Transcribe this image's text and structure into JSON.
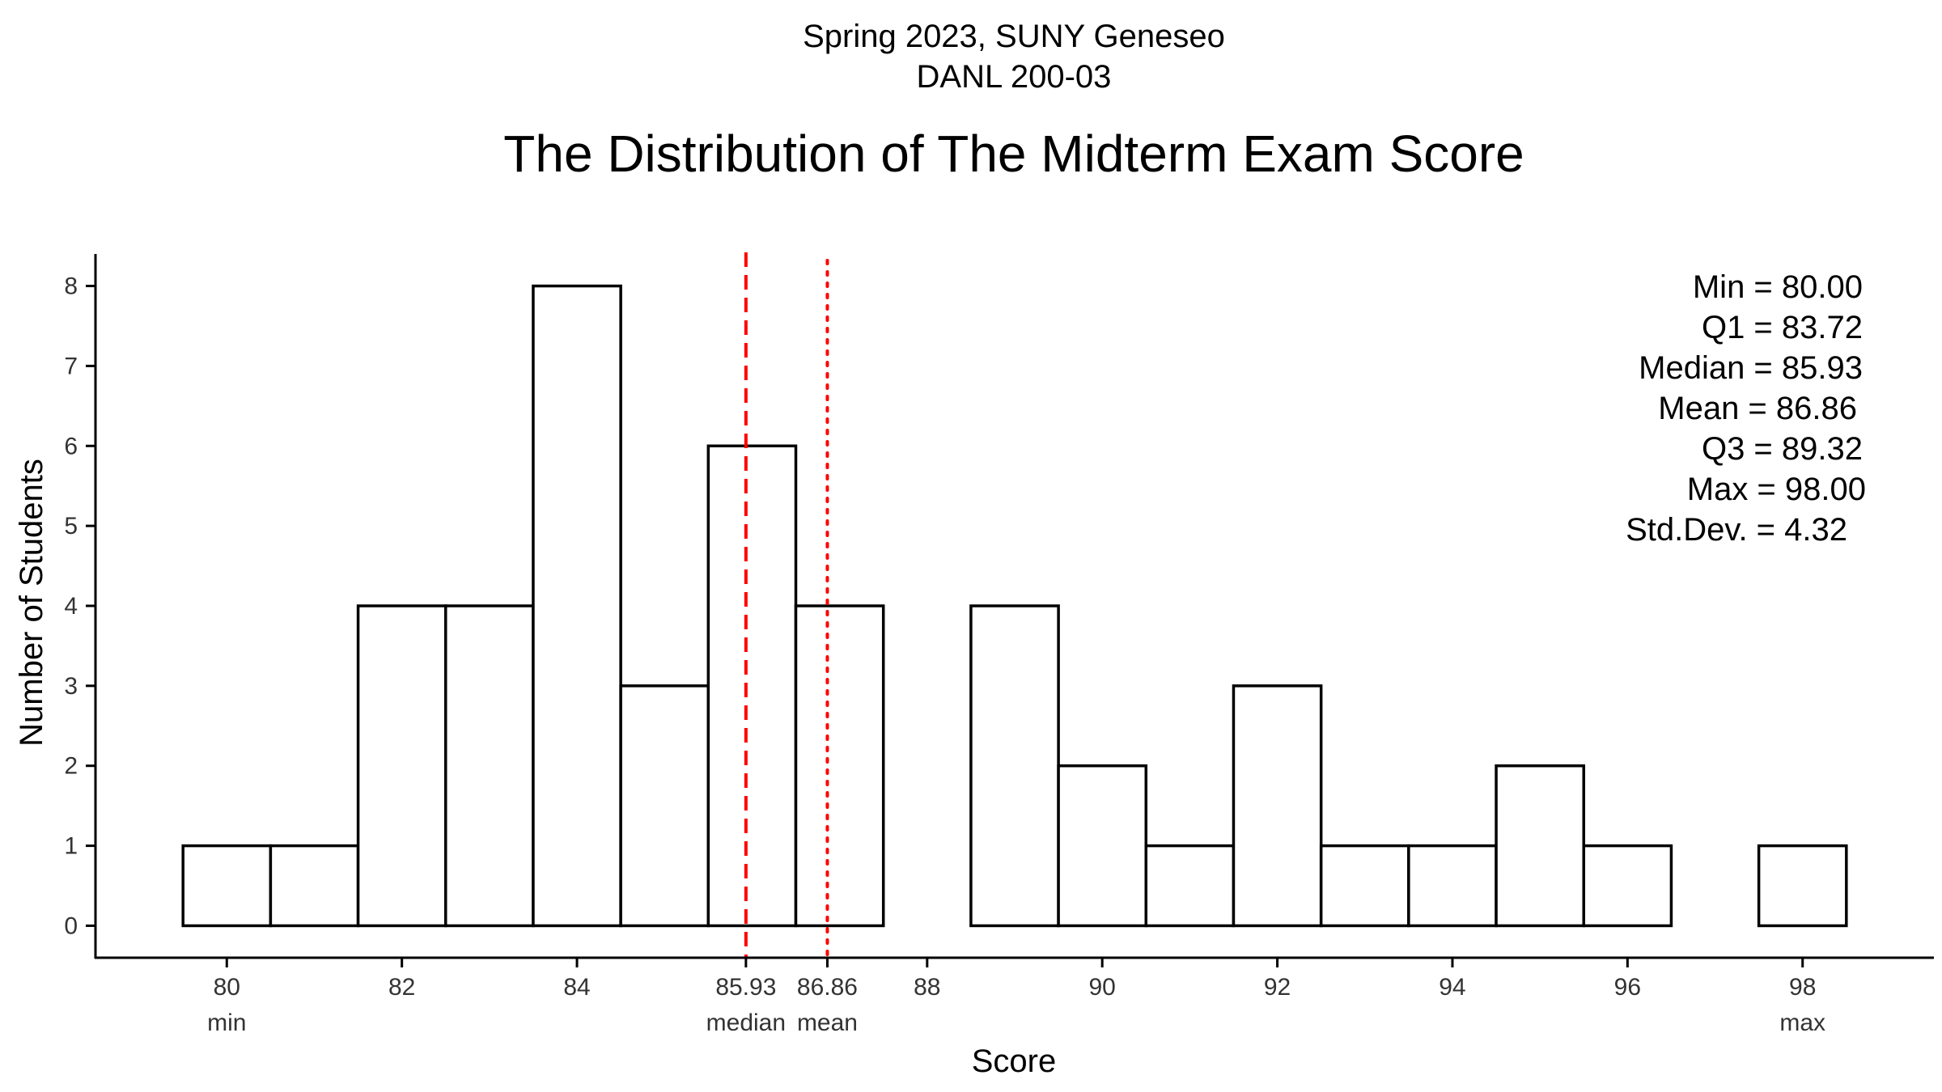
{
  "chart_data": {
    "type": "bar",
    "subtitle_lines": [
      "Spring 2023, SUNY Geneseo",
      "DANL 200-03"
    ],
    "title": "The Distribution of The Midterm Exam Score",
    "xlabel": "Score",
    "ylabel": "Number of Students",
    "xlim": [
      78.5,
      99.5
    ],
    "ylim": [
      -0.4,
      8.4
    ],
    "bin_width": 1,
    "bins": [
      {
        "x": 80,
        "count": 1
      },
      {
        "x": 81,
        "count": 1
      },
      {
        "x": 82,
        "count": 4
      },
      {
        "x": 83,
        "count": 4
      },
      {
        "x": 84,
        "count": 8
      },
      {
        "x": 85,
        "count": 3
      },
      {
        "x": 86,
        "count": 6
      },
      {
        "x": 87,
        "count": 4
      },
      {
        "x": 88,
        "count": 0
      },
      {
        "x": 89,
        "count": 4
      },
      {
        "x": 90,
        "count": 2
      },
      {
        "x": 91,
        "count": 1
      },
      {
        "x": 92,
        "count": 3
      },
      {
        "x": 93,
        "count": 1
      },
      {
        "x": 94,
        "count": 1
      },
      {
        "x": 95,
        "count": 2
      },
      {
        "x": 96,
        "count": 1
      },
      {
        "x": 97,
        "count": 0
      },
      {
        "x": 98,
        "count": 1
      }
    ],
    "x_ticks": [
      {
        "value": 80,
        "label": "80",
        "sublabel": "min"
      },
      {
        "value": 82,
        "label": "82",
        "sublabel": ""
      },
      {
        "value": 84,
        "label": "84",
        "sublabel": ""
      },
      {
        "value": 85.93,
        "label": "85.93",
        "sublabel": "median"
      },
      {
        "value": 86.86,
        "label": "86.86",
        "sublabel": "mean"
      },
      {
        "value": 88,
        "label": "88",
        "sublabel": ""
      },
      {
        "value": 90,
        "label": "90",
        "sublabel": ""
      },
      {
        "value": 92,
        "label": "92",
        "sublabel": ""
      },
      {
        "value": 94,
        "label": "94",
        "sublabel": ""
      },
      {
        "value": 96,
        "label": "96",
        "sublabel": ""
      },
      {
        "value": 98,
        "label": "98",
        "sublabel": "max"
      }
    ],
    "y_ticks": [
      0,
      1,
      2,
      3,
      4,
      5,
      6,
      7,
      8
    ],
    "reference_lines": [
      {
        "value": 85.93,
        "style": "dashed",
        "color": "#ff0000"
      },
      {
        "value": 86.86,
        "style": "dotted",
        "color": "#ff0000"
      }
    ],
    "stats_annotation": [
      "Min = 80.00",
      "Q1 = 83.72",
      "Median = 85.93",
      "Mean = 86.86",
      "Q3 = 89.32",
      "Max = 98.00",
      "Std.Dev. = 4.32"
    ]
  }
}
